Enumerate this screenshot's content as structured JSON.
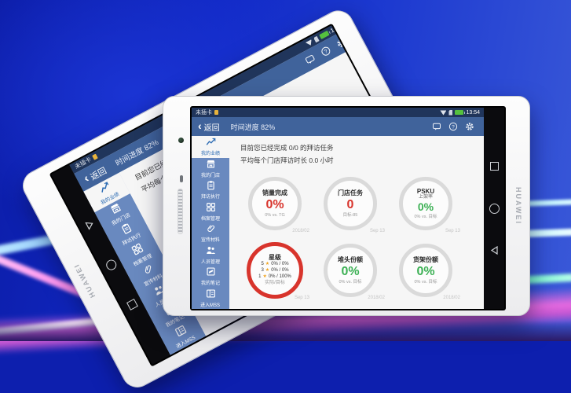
{
  "device": {
    "brand": "HUAWEI"
  },
  "status_bar": {
    "no_sim": "未插卡",
    "time": "13:54",
    "icons": [
      "sim-icon",
      "wifi-icon",
      "sd-card-icon",
      "battery-icon"
    ]
  },
  "nav_bar": {
    "back": "返回",
    "progress": "时间进度 82%",
    "icons": [
      "message-icon",
      "help-icon",
      "settings-gear-icon"
    ]
  },
  "sidebar": {
    "items": [
      {
        "label": "我的业绩",
        "icon": "chart",
        "active": true
      },
      {
        "label": "我的门店",
        "icon": "store",
        "active": false
      },
      {
        "label": "拜访执行",
        "icon": "clipboard",
        "active": false
      },
      {
        "label": "档案管理",
        "icon": "grid",
        "active": false
      },
      {
        "label": "宣传材料",
        "icon": "paperclip",
        "active": false
      },
      {
        "label": "人员管理",
        "icon": "people",
        "active": false
      },
      {
        "label": "我的笔记",
        "icon": "note",
        "active": false
      },
      {
        "label": "进入MSS",
        "icon": "layout",
        "active": false
      }
    ]
  },
  "intro": {
    "line1": "目前您已经完成 0/0 的拜访任务",
    "line2": "平均每个门店拜访时长 0.0 小时"
  },
  "gauges": [
    {
      "title": "销量完成",
      "value": "0%",
      "value_color": "red",
      "sub": "0% vs. TG",
      "date": "2018/02"
    },
    {
      "title": "门店任务",
      "value": "0",
      "value_color": "red",
      "sub": "目标:85",
      "date": "Sep 13"
    },
    {
      "title": "PSKU",
      "subtitle": "上架率",
      "value": "0%",
      "value_color": "green",
      "sub": "0% vs. 目标",
      "date": "Sep 13"
    },
    {
      "title": "星级",
      "ring": "red",
      "rows": [
        {
          "num": "5",
          "star": "★",
          "val": "0% / 0%"
        },
        {
          "num": "3",
          "star": "★",
          "val": "0% / 0%"
        },
        {
          "num": "1",
          "star": "★",
          "val": "0% / 100%"
        }
      ],
      "footer": "实际/目标",
      "date": "Sep 13"
    },
    {
      "title": "堆头份额",
      "value": "0%",
      "value_color": "green",
      "sub": "0% vs. 目标",
      "date": "2018/02"
    },
    {
      "title": "货架份额",
      "value": "0%",
      "value_color": "green",
      "sub": "0% vs. 目标",
      "date": "2018/02"
    }
  ],
  "colors": {
    "status_bar": "#20355b",
    "nav_bar": "#40639b",
    "sidebar": "#6989bf",
    "sidebar_active_text": "#2e6db4",
    "negative_red": "#d8342c",
    "positive_green": "#3cb054",
    "star_yellow": "#f0a41e",
    "ring_gray": "#dadada",
    "battery_green": "#55c13e"
  }
}
